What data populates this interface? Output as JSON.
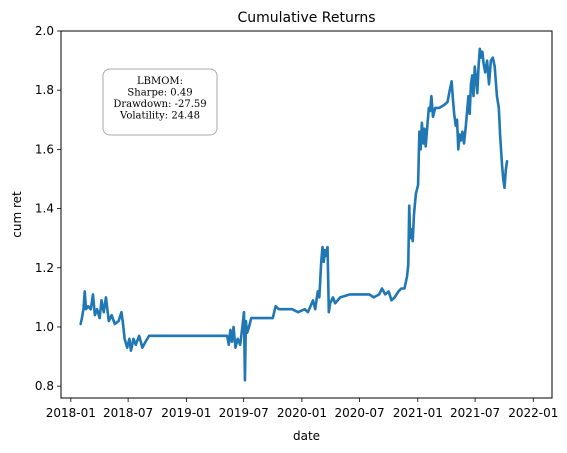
{
  "chart_data": {
    "type": "line",
    "title": "Cumulative Returns",
    "xlabel": "date",
    "ylabel": "cum ret",
    "xlim": [
      "2017-12-01",
      "2022-03-01"
    ],
    "ylim": [
      0.76,
      2.0
    ],
    "x_ticks": [
      "2018-01",
      "2018-07",
      "2019-01",
      "2019-07",
      "2020-01",
      "2020-07",
      "2021-01",
      "2021-07",
      "2022-01"
    ],
    "y_ticks": [
      0.8,
      1.0,
      1.2,
      1.4,
      1.6,
      1.8,
      2.0
    ],
    "grid": false,
    "annotation": {
      "lines": [
        "LBMOM:",
        "Sharpe: 0.49",
        "Drawdown: -27.59",
        "Volatility: 24.48"
      ]
    },
    "series": [
      {
        "color": "#1f77b4",
        "points": [
          [
            "2018-02-01",
            1.01
          ],
          [
            "2018-02-05",
            1.03
          ],
          [
            "2018-02-10",
            1.06
          ],
          [
            "2018-02-14",
            1.12
          ],
          [
            "2018-02-18",
            1.06
          ],
          [
            "2018-02-25",
            1.07
          ],
          [
            "2018-03-05",
            1.06
          ],
          [
            "2018-03-12",
            1.11
          ],
          [
            "2018-03-18",
            1.04
          ],
          [
            "2018-03-25",
            1.06
          ],
          [
            "2018-04-02",
            1.03
          ],
          [
            "2018-04-08",
            1.09
          ],
          [
            "2018-04-15",
            1.05
          ],
          [
            "2018-04-22",
            1.1
          ],
          [
            "2018-05-01",
            1.02
          ],
          [
            "2018-05-10",
            1.04
          ],
          [
            "2018-05-20",
            1.01
          ],
          [
            "2018-06-01",
            1.02
          ],
          [
            "2018-06-10",
            1.05
          ],
          [
            "2018-06-15",
            1.01
          ],
          [
            "2018-06-20",
            0.96
          ],
          [
            "2018-06-28",
            0.93
          ],
          [
            "2018-07-05",
            0.96
          ],
          [
            "2018-07-10",
            0.92
          ],
          [
            "2018-07-18",
            0.96
          ],
          [
            "2018-07-25",
            0.94
          ],
          [
            "2018-08-05",
            0.97
          ],
          [
            "2018-08-15",
            0.93
          ],
          [
            "2018-08-25",
            0.95
          ],
          [
            "2018-09-05",
            0.97
          ],
          [
            "2018-10-01",
            0.97
          ],
          [
            "2018-12-01",
            0.97
          ],
          [
            "2019-02-01",
            0.97
          ],
          [
            "2019-04-01",
            0.97
          ],
          [
            "2019-05-10",
            0.97
          ],
          [
            "2019-05-15",
            0.94
          ],
          [
            "2019-05-20",
            0.99
          ],
          [
            "2019-05-25",
            0.95
          ],
          [
            "2019-05-30",
            1.0
          ],
          [
            "2019-06-05",
            0.93
          ],
          [
            "2019-06-12",
            0.96
          ],
          [
            "2019-06-20",
            0.94
          ],
          [
            "2019-06-28",
            1.01
          ],
          [
            "2019-07-02",
            1.05
          ],
          [
            "2019-07-05",
            0.82
          ],
          [
            "2019-07-08",
            1.02
          ],
          [
            "2019-07-12",
            0.98
          ],
          [
            "2019-07-18",
            1.0
          ],
          [
            "2019-07-25",
            1.03
          ],
          [
            "2019-08-10",
            1.03
          ],
          [
            "2019-09-10",
            1.03
          ],
          [
            "2019-10-01",
            1.03
          ],
          [
            "2019-10-10",
            1.07
          ],
          [
            "2019-10-20",
            1.06
          ],
          [
            "2019-11-01",
            1.06
          ],
          [
            "2019-12-01",
            1.06
          ],
          [
            "2019-12-20",
            1.05
          ],
          [
            "2020-01-10",
            1.06
          ],
          [
            "2020-01-20",
            1.05
          ],
          [
            "2020-01-28",
            1.07
          ],
          [
            "2020-02-05",
            1.09
          ],
          [
            "2020-02-12",
            1.06
          ],
          [
            "2020-02-20",
            1.12
          ],
          [
            "2020-02-25",
            1.1
          ],
          [
            "2020-03-02",
            1.22
          ],
          [
            "2020-03-06",
            1.27
          ],
          [
            "2020-03-10",
            1.22
          ],
          [
            "2020-03-14",
            1.26
          ],
          [
            "2020-03-18",
            1.24
          ],
          [
            "2020-03-22",
            1.27
          ],
          [
            "2020-03-26",
            1.05
          ],
          [
            "2020-03-30",
            1.08
          ],
          [
            "2020-04-08",
            1.1
          ],
          [
            "2020-04-15",
            1.08
          ],
          [
            "2020-05-01",
            1.1
          ],
          [
            "2020-06-01",
            1.11
          ],
          [
            "2020-07-01",
            1.11
          ],
          [
            "2020-08-01",
            1.11
          ],
          [
            "2020-08-15",
            1.1
          ],
          [
            "2020-09-01",
            1.11
          ],
          [
            "2020-09-10",
            1.13
          ],
          [
            "2020-09-20",
            1.11
          ],
          [
            "2020-10-01",
            1.12
          ],
          [
            "2020-10-10",
            1.09
          ],
          [
            "2020-10-20",
            1.1
          ],
          [
            "2020-11-01",
            1.12
          ],
          [
            "2020-11-10",
            1.13
          ],
          [
            "2020-11-20",
            1.13
          ],
          [
            "2020-11-28",
            1.17
          ],
          [
            "2020-12-02",
            1.21
          ],
          [
            "2020-12-05",
            1.41
          ],
          [
            "2020-12-08",
            1.3
          ],
          [
            "2020-12-12",
            1.33
          ],
          [
            "2020-12-16",
            1.29
          ],
          [
            "2020-12-20",
            1.38
          ],
          [
            "2020-12-26",
            1.45
          ],
          [
            "2021-01-02",
            1.48
          ],
          [
            "2021-01-06",
            1.66
          ],
          [
            "2021-01-10",
            1.6
          ],
          [
            "2021-01-14",
            1.69
          ],
          [
            "2021-01-18",
            1.62
          ],
          [
            "2021-01-22",
            1.67
          ],
          [
            "2021-01-26",
            1.61
          ],
          [
            "2021-02-01",
            1.69
          ],
          [
            "2021-02-05",
            1.74
          ],
          [
            "2021-02-09",
            1.73
          ],
          [
            "2021-02-13",
            1.78
          ],
          [
            "2021-02-18",
            1.71
          ],
          [
            "2021-02-25",
            1.74
          ],
          [
            "2021-03-10",
            1.74
          ],
          [
            "2021-03-25",
            1.75
          ],
          [
            "2021-04-05",
            1.76
          ],
          [
            "2021-04-12",
            1.8
          ],
          [
            "2021-04-18",
            1.83
          ],
          [
            "2021-04-22",
            1.77
          ],
          [
            "2021-04-26",
            1.72
          ],
          [
            "2021-05-01",
            1.68
          ],
          [
            "2021-05-05",
            1.7
          ],
          [
            "2021-05-09",
            1.6
          ],
          [
            "2021-05-13",
            1.65
          ],
          [
            "2021-05-17",
            1.63
          ],
          [
            "2021-05-22",
            1.66
          ],
          [
            "2021-05-27",
            1.62
          ],
          [
            "2021-06-01",
            1.67
          ],
          [
            "2021-06-06",
            1.73
          ],
          [
            "2021-06-10",
            1.78
          ],
          [
            "2021-06-14",
            1.72
          ],
          [
            "2021-06-18",
            1.82
          ],
          [
            "2021-06-22",
            1.85
          ],
          [
            "2021-06-26",
            1.78
          ],
          [
            "2021-06-30",
            1.88
          ],
          [
            "2021-07-04",
            1.84
          ],
          [
            "2021-07-08",
            1.79
          ],
          [
            "2021-07-12",
            1.88
          ],
          [
            "2021-07-16",
            1.94
          ],
          [
            "2021-07-20",
            1.91
          ],
          [
            "2021-07-24",
            1.93
          ],
          [
            "2021-07-28",
            1.89
          ],
          [
            "2021-08-02",
            1.86
          ],
          [
            "2021-08-08",
            1.9
          ],
          [
            "2021-08-14",
            1.82
          ],
          [
            "2021-08-20",
            1.9
          ],
          [
            "2021-08-26",
            1.91
          ],
          [
            "2021-09-01",
            1.88
          ],
          [
            "2021-09-08",
            1.78
          ],
          [
            "2021-09-14",
            1.74
          ],
          [
            "2021-09-18",
            1.65
          ],
          [
            "2021-09-24",
            1.55
          ],
          [
            "2021-09-28",
            1.5
          ],
          [
            "2021-10-02",
            1.47
          ],
          [
            "2021-10-06",
            1.53
          ],
          [
            "2021-10-10",
            1.56
          ]
        ]
      }
    ]
  }
}
